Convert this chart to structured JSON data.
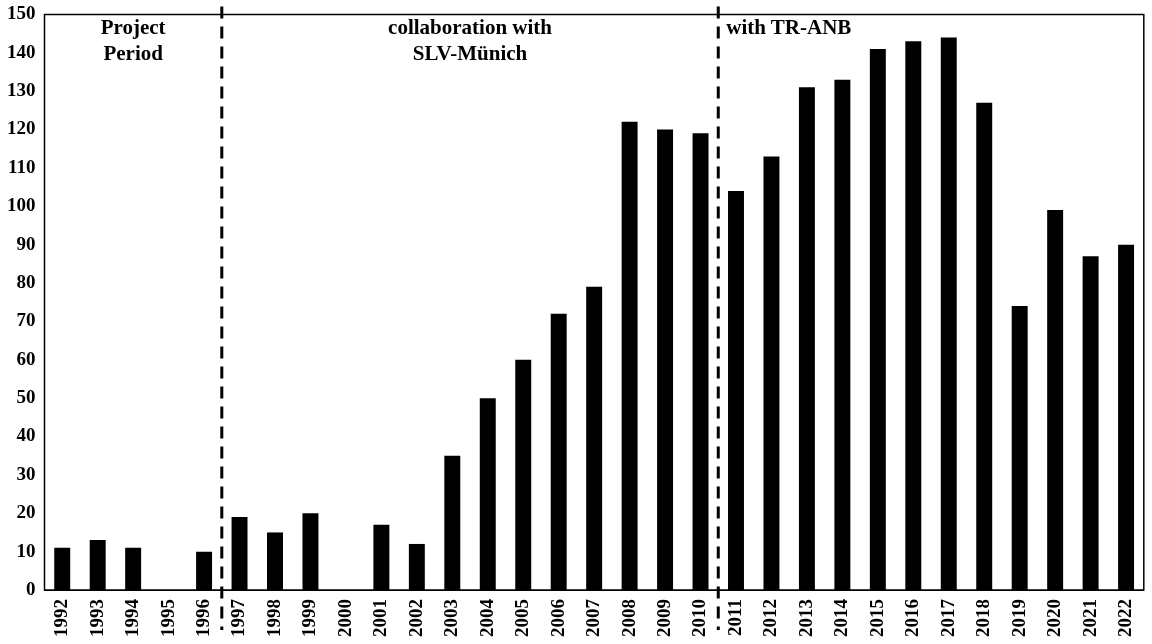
{
  "chart_data": {
    "type": "bar",
    "x": [
      1992,
      1993,
      1994,
      1995,
      1996,
      1997,
      1998,
      1999,
      2000,
      2001,
      2002,
      2003,
      2004,
      2005,
      2006,
      2007,
      2008,
      2009,
      2010,
      2011,
      2012,
      2013,
      2014,
      2015,
      2016,
      2017,
      2018,
      2019,
      2020,
      2021,
      2022
    ],
    "values": [
      11,
      13,
      11,
      0,
      10,
      19,
      15,
      20,
      0,
      17,
      12,
      35,
      50,
      60,
      72,
      79,
      122,
      120,
      119,
      104,
      113,
      131,
      133,
      141,
      143,
      144,
      127,
      74,
      99,
      87,
      90
    ],
    "color": "#000000",
    "xlim": [
      1991.5,
      2022.5
    ],
    "xticks": [
      1992,
      1993,
      1994,
      1995,
      1996,
      1997,
      1998,
      1999,
      2000,
      2001,
      2002,
      2003,
      2004,
      2005,
      2006,
      2007,
      2008,
      2009,
      2010,
      2011,
      2012,
      2013,
      2014,
      2015,
      2016,
      2017,
      2018,
      2019,
      2020,
      2021,
      2022
    ],
    "ylim": [
      0,
      150
    ],
    "yticks": [
      0,
      10,
      20,
      30,
      40,
      50,
      60,
      70,
      80,
      90,
      100,
      110,
      120,
      130,
      140,
      150
    ],
    "grid": false,
    "ref_lines": [
      {
        "axis": "x",
        "value": 1996.5,
        "color": "#000000",
        "line_style": "dashed"
      },
      {
        "axis": "x",
        "value": 2010.5,
        "color": "#000000",
        "line_style": "dashed"
      }
    ],
    "annotations": [
      "Project\nPeriod",
      "collaboration with\nSLV-Münich",
      "with TR-ANB"
    ]
  }
}
